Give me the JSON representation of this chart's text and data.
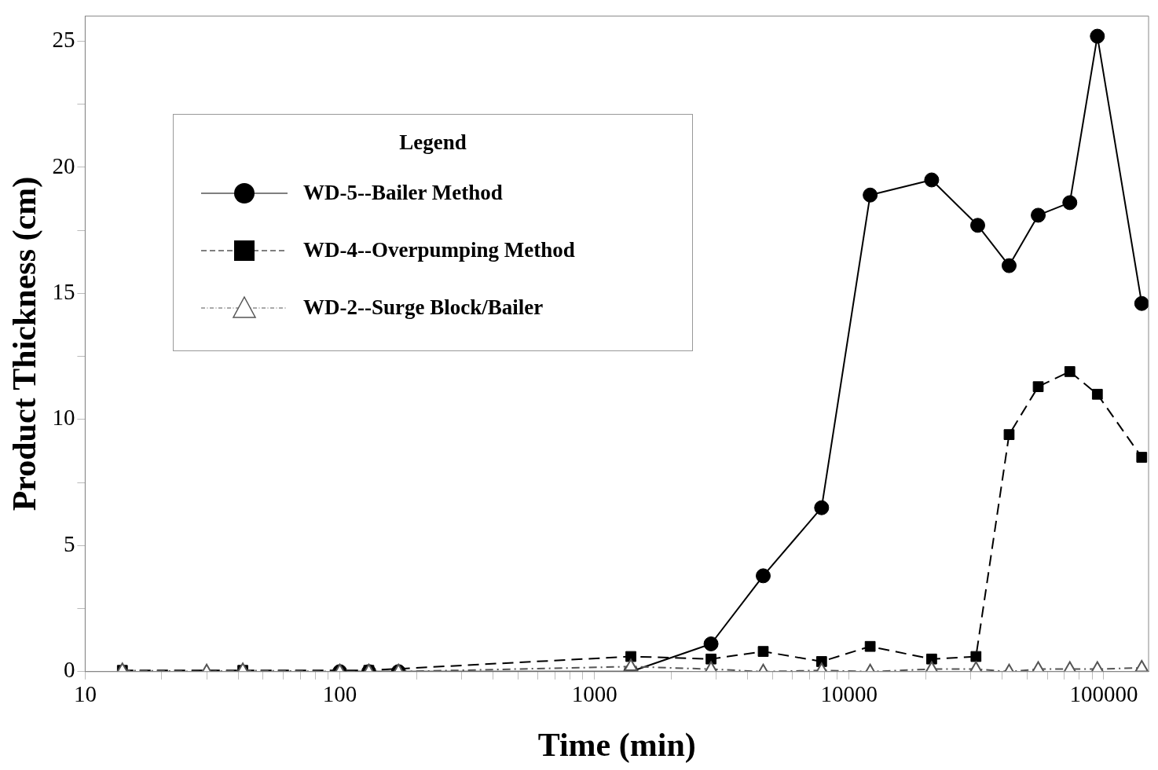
{
  "chart_data": {
    "type": "line",
    "xlabel": "Time (min)",
    "ylabel": "Product Thickness (cm)",
    "legend_title": "Legend",
    "log": "x",
    "grid": false,
    "legend": "top left",
    "xlim": [
      10,
      150000
    ],
    "xticks": [
      10,
      {
        "value": 20,
        "label": null
      },
      {
        "value": 30,
        "label": null
      },
      {
        "value": 40,
        "label": null
      },
      {
        "value": 50,
        "label": null
      },
      {
        "value": 60,
        "label": null
      },
      {
        "value": 70,
        "label": null
      },
      {
        "value": 80,
        "label": null
      },
      {
        "value": 90,
        "label": null
      },
      100,
      {
        "value": 200,
        "label": null
      },
      {
        "value": 300,
        "label": null
      },
      {
        "value": 400,
        "label": null
      },
      {
        "value": 500,
        "label": null
      },
      {
        "value": 600,
        "label": null
      },
      {
        "value": 700,
        "label": null
      },
      {
        "value": 800,
        "label": null
      },
      {
        "value": 900,
        "label": null
      },
      1000,
      {
        "value": 2000,
        "label": null
      },
      {
        "value": 3000,
        "label": null
      },
      {
        "value": 4000,
        "label": null
      },
      {
        "value": 5000,
        "label": null
      },
      {
        "value": 6000,
        "label": null
      },
      {
        "value": 7000,
        "label": null
      },
      {
        "value": 8000,
        "label": null
      },
      {
        "value": 9000,
        "label": null
      },
      10000,
      {
        "value": 20000,
        "label": null
      },
      {
        "value": 30000,
        "label": null
      },
      {
        "value": 40000,
        "label": null
      },
      {
        "value": 50000,
        "label": null
      },
      {
        "value": 60000,
        "label": null
      },
      {
        "value": 70000,
        "label": null
      },
      {
        "value": 80000,
        "label": null
      },
      {
        "value": 90000,
        "label": null
      },
      100000
    ],
    "ylim": [
      0,
      26
    ],
    "yticks": [
      0,
      {
        "value": 2.5,
        "label": null
      },
      5,
      {
        "value": 7.5,
        "label": null
      },
      10,
      {
        "value": 12.5,
        "label": null
      },
      15,
      {
        "value": 17.5,
        "label": null
      },
      20,
      {
        "value": 22.5,
        "label": null
      },
      25
    ],
    "series": [
      {
        "name": "WD-5--Bailer Method",
        "color": "#000000",
        "marker": "circle",
        "line_style": "solid",
        "x": [
          100,
          130,
          170,
          1390,
          2870,
          4600,
          7800,
          12100,
          21100,
          32000,
          42500,
          55300,
          73600,
          94400,
          141000
        ],
        "values": [
          0,
          0,
          0,
          0,
          1.1,
          3.8,
          6.5,
          18.9,
          19.5,
          17.7,
          16.1,
          18.1,
          18.6,
          25.2,
          14.6
        ]
      },
      {
        "name": "WD-4--Overpumping Method",
        "color": "#000000",
        "marker": "square",
        "line_style": "dashed",
        "x": [
          14,
          41.6,
          130,
          1390,
          2870,
          4600,
          7800,
          12100,
          21100,
          31500,
          42500,
          55300,
          73600,
          94400,
          141000
        ],
        "values": [
          0.05,
          0.05,
          0.05,
          0.6,
          0.5,
          0.8,
          0.4,
          1.0,
          0.5,
          0.6,
          9.4,
          11.3,
          11.9,
          11.0,
          8.5
        ]
      },
      {
        "name": "WD-2--Surge Block/Bailer",
        "color": "#555555",
        "marker": "triangle",
        "line_style": "dotted",
        "x": [
          14,
          30,
          41.6,
          100,
          130,
          170,
          1390,
          2870,
          4600,
          7800,
          12100,
          21100,
          31500,
          42500,
          55300,
          73600,
          94400,
          141000
        ],
        "values": [
          0.05,
          0,
          0.05,
          0,
          0,
          0,
          0.2,
          0.1,
          0,
          0.05,
          0,
          0.1,
          0.1,
          0,
          0.1,
          0.1,
          0.1,
          0.15
        ]
      }
    ]
  }
}
